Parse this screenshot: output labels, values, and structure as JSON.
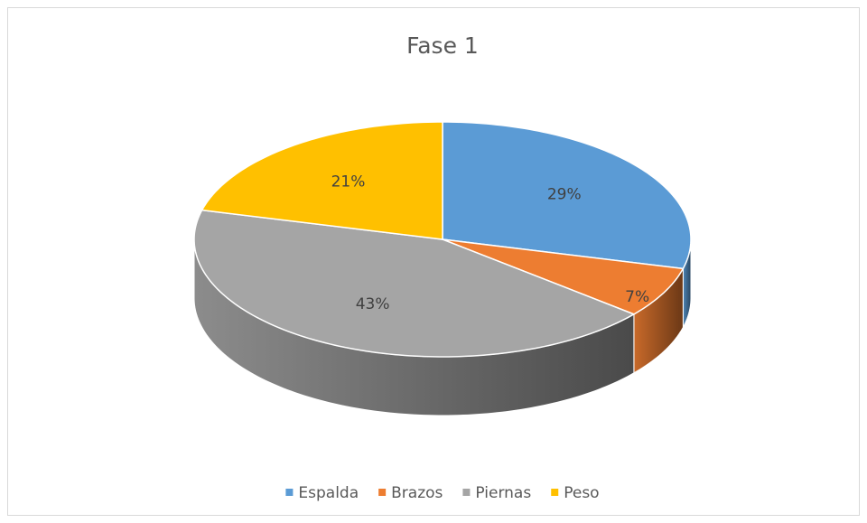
{
  "chart_data": {
    "type": "pie3d",
    "title": "Fase 1",
    "categories": [
      "Espalda",
      "Brazos",
      "Piernas",
      "Peso"
    ],
    "values": [
      29,
      7,
      43,
      21
    ],
    "value_labels": [
      "29%",
      "7%",
      "43%",
      "21%"
    ],
    "colors": [
      "#5b9bd5",
      "#ed7d31",
      "#a5a5a5",
      "#ffc000"
    ],
    "legend": "bottom"
  }
}
